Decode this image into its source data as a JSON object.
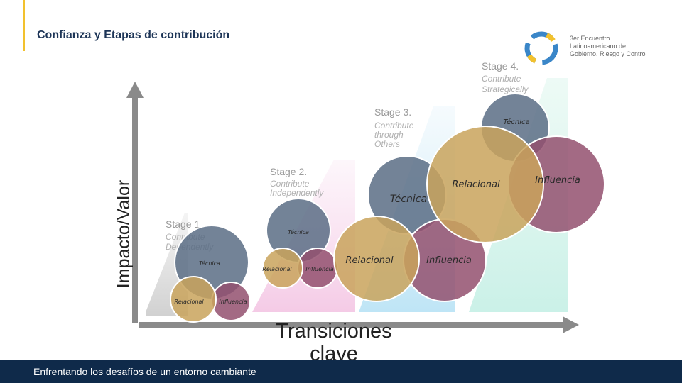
{
  "header": {
    "title": "Confianza y Etapas de contribución"
  },
  "logo": {
    "lines": [
      "3er Encuentro",
      "Latinoamericano de",
      "Gobierno, Riesgo y Control"
    ]
  },
  "axes": {
    "y_label": "Impacto/Valor",
    "x_label_lines": [
      "Transiciones",
      "clave"
    ]
  },
  "stages": [
    {
      "title": "Stage 1.",
      "lines": [
        "Contribute",
        "Dependently"
      ]
    },
    {
      "title": "Stage 2.",
      "lines": [
        "Contribute",
        "Independently"
      ]
    },
    {
      "title": "Stage 3.",
      "lines": [
        "Contribute",
        "through",
        "Others"
      ]
    },
    {
      "title": "Stage 4.",
      "lines": [
        "Contribute",
        "Strategically"
      ]
    }
  ],
  "clusters": [
    {
      "labels": [
        "Técnica",
        "Relacional",
        "Influencia"
      ]
    },
    {
      "labels": [
        "Técnica",
        "Relacional",
        "Influencia"
      ]
    },
    {
      "labels": [
        "Técnica",
        "Relacional",
        "Influencia"
      ]
    },
    {
      "labels": [
        "Técnica",
        "Relacional",
        "Influencia"
      ]
    }
  ],
  "footer": {
    "text": "Enfrentando los desafíos de un entorno cambiante"
  }
}
